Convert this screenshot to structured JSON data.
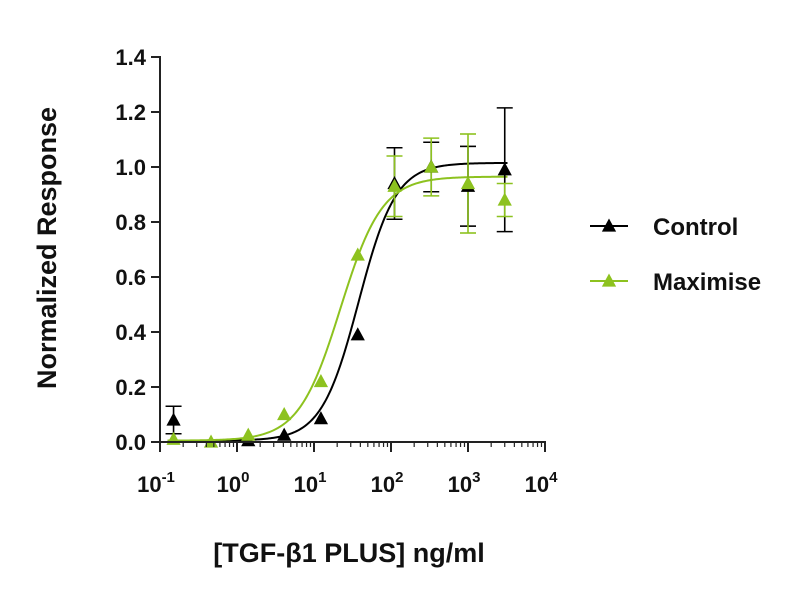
{
  "chart_data": {
    "type": "scatter",
    "xlabel": "[TGF-β1 PLUS] ng/ml",
    "ylabel": "Normalized Response",
    "xscale": "log10",
    "xlim": [
      0.1,
      10000
    ],
    "ylim": [
      0,
      1.4
    ],
    "yticks": [
      "0.0",
      "0.2",
      "0.4",
      "0.6",
      "0.8",
      "1.0",
      "1.2",
      "1.4"
    ],
    "xticks": [
      {
        "base": "10",
        "exp": "-1"
      },
      {
        "base": "10",
        "exp": "0"
      },
      {
        "base": "10",
        "exp": "1"
      },
      {
        "base": "10",
        "exp": "2"
      },
      {
        "base": "10",
        "exp": "3"
      },
      {
        "base": "10",
        "exp": "4"
      }
    ],
    "grid": false,
    "legend_position": "right",
    "series": [
      {
        "name": "Control",
        "color": "#000000",
        "marker": "triangle",
        "fit": {
          "model": "four-parameter-logistic",
          "bottom": 0.005,
          "top": 1.015,
          "ec50": 38,
          "hill": 1.8
        },
        "points": [
          {
            "x": 0.15,
            "y": 0.08,
            "err": 0.05
          },
          {
            "x": 1.4,
            "y": 0.005,
            "err": 0
          },
          {
            "x": 4.1,
            "y": 0.025,
            "err": 0
          },
          {
            "x": 12.3,
            "y": 0.085,
            "err": 0
          },
          {
            "x": 37,
            "y": 0.39,
            "err": 0
          },
          {
            "x": 111,
            "y": 0.94,
            "err": 0.13
          },
          {
            "x": 333,
            "y": 1.0,
            "err": 0.09
          },
          {
            "x": 1000,
            "y": 0.93,
            "err": 0.145
          },
          {
            "x": 3000,
            "y": 0.99,
            "err": 0.225
          }
        ]
      },
      {
        "name": "Maximise",
        "color": "#8dc21f",
        "marker": "triangle",
        "fit": {
          "model": "four-parameter-logistic",
          "bottom": 0.005,
          "top": 0.965,
          "ec50": 22,
          "hill": 1.6
        },
        "points": [
          {
            "x": 0.15,
            "y": 0.01,
            "err": 0
          },
          {
            "x": 0.46,
            "y": 0.0,
            "err": 0
          },
          {
            "x": 1.4,
            "y": 0.025,
            "err": 0
          },
          {
            "x": 4.1,
            "y": 0.1,
            "err": 0
          },
          {
            "x": 12.3,
            "y": 0.22,
            "err": 0
          },
          {
            "x": 37,
            "y": 0.68,
            "err": 0
          },
          {
            "x": 111,
            "y": 0.93,
            "err": 0.11
          },
          {
            "x": 333,
            "y": 1.0,
            "err": 0.105
          },
          {
            "x": 1000,
            "y": 0.94,
            "err": 0.18
          },
          {
            "x": 3000,
            "y": 0.88,
            "err": 0.06
          }
        ]
      }
    ]
  }
}
